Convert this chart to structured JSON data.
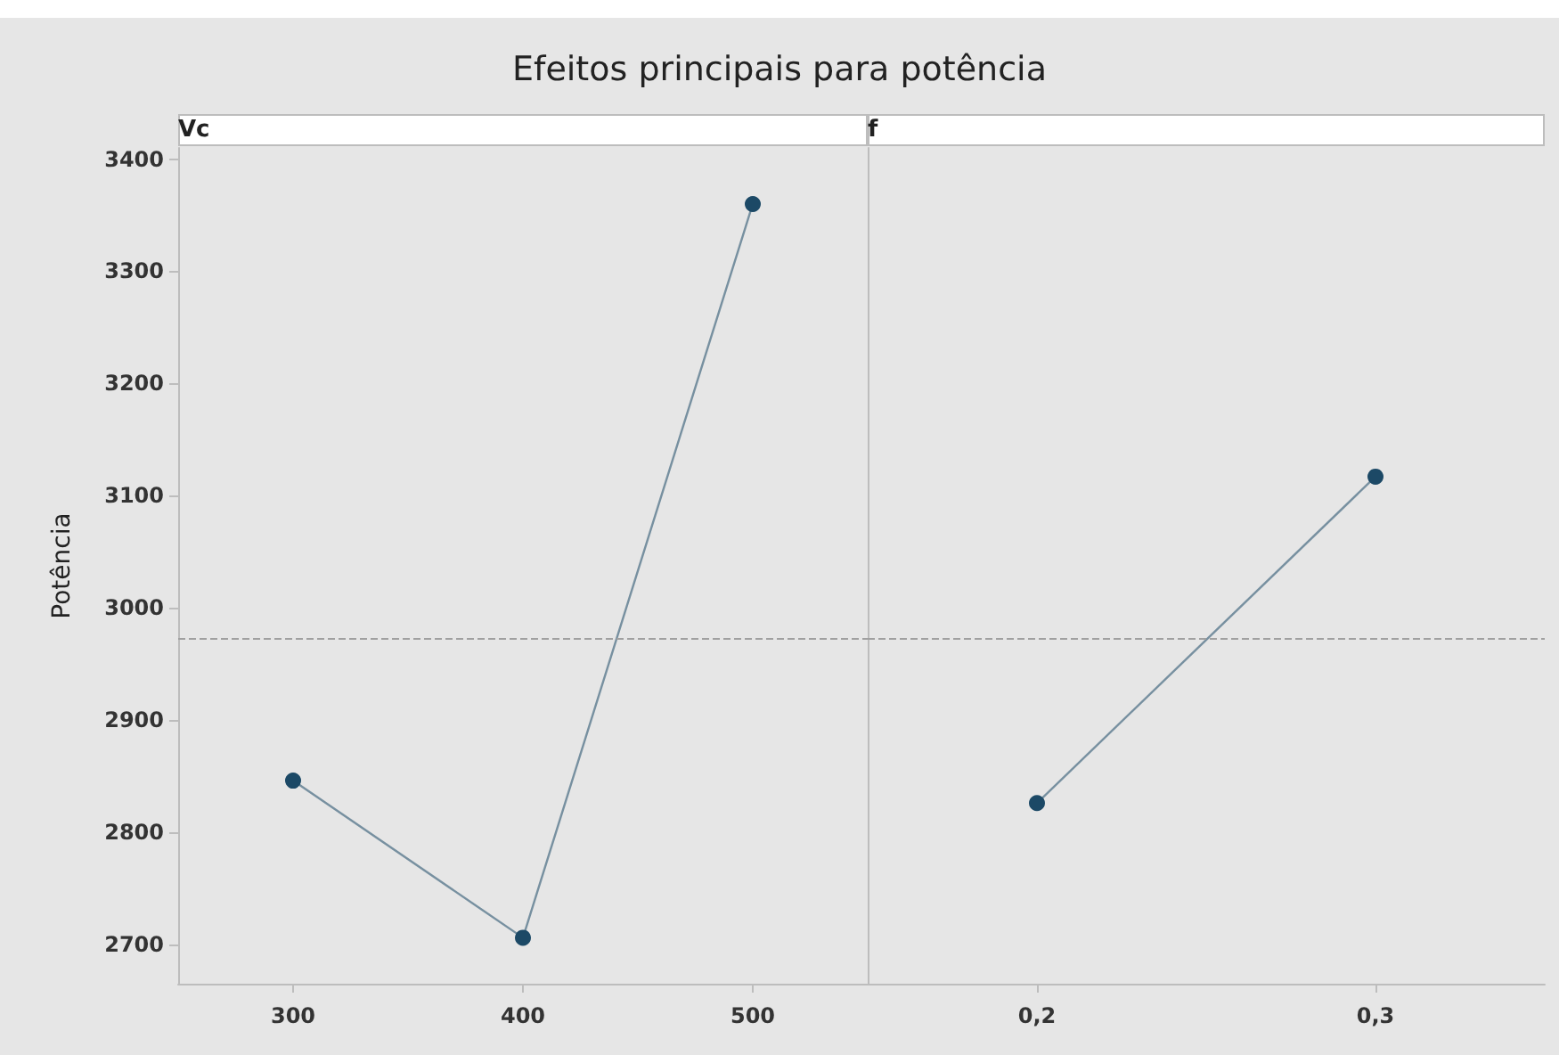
{
  "chart_data": [
    {
      "type": "line",
      "title": "Vc",
      "annotations": [
        "Efeitos principais para potência"
      ],
      "ylabel": "Potência",
      "categories": [
        "300",
        "400",
        "500"
      ],
      "series": [
        {
          "color": "#1c4966",
          "values": [
            2846,
            2706,
            3360
          ]
        }
      ],
      "ylim": [
        2665,
        3410
      ],
      "yticks": [
        2700,
        2800,
        2900,
        3000,
        3100,
        3200,
        3300,
        3400
      ],
      "grid": false,
      "marker": "circle",
      "line_style": "solid",
      "ref_lines": [
        {
          "axis": "y",
          "value": 2972,
          "line_style": "dashed",
          "color": "#a0a0a0"
        }
      ]
    },
    {
      "type": "line",
      "title": "f",
      "categories": [
        "0,2",
        "0,3"
      ],
      "series": [
        {
          "color": "#1c4966",
          "values": [
            2826,
            3117
          ]
        }
      ],
      "ylim": [
        2665,
        3410
      ],
      "yticks": [
        2700,
        2800,
        2900,
        3000,
        3100,
        3200,
        3300,
        3400
      ],
      "grid": false,
      "marker": "circle",
      "line_style": "solid",
      "tick_labels": "x",
      "ref_lines": [
        {
          "axis": "y",
          "value": 2972,
          "line_style": "dashed",
          "color": "#a0a0a0"
        }
      ]
    }
  ]
}
